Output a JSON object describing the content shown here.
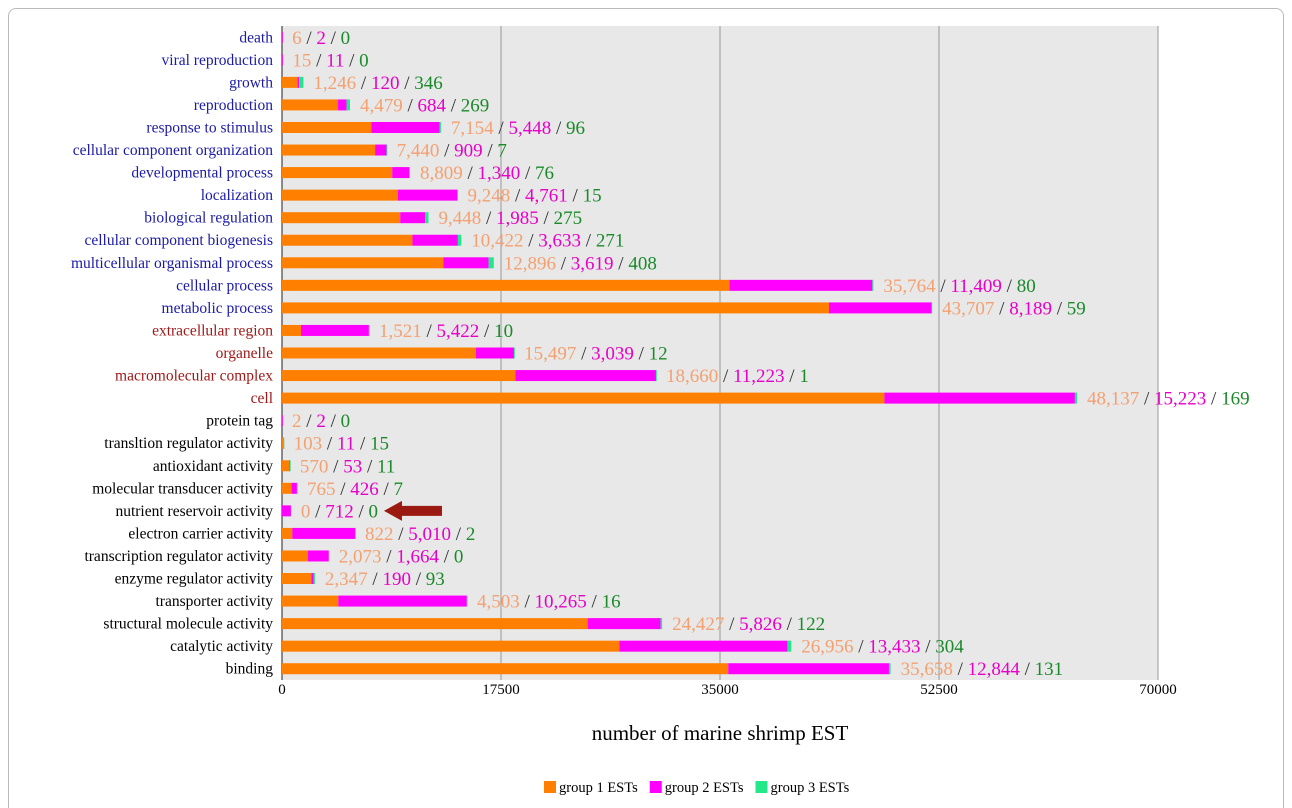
{
  "chart_data": {
    "type": "bar",
    "orientation": "horizontal",
    "stacked": true,
    "xlabel": "number of marine shrimp EST",
    "xlim": [
      0,
      70000
    ],
    "xticks": [
      0,
      17500,
      35000,
      52500,
      70000
    ],
    "grid": true,
    "legend_position": "bottom",
    "categories": [
      "death",
      "viral reproduction",
      "growth",
      "reproduction",
      "response to stimulus",
      "cellular component organization",
      "developmental process",
      "localization",
      "biological regulation",
      "cellular component biogenesis",
      "multicellular organismal process",
      "cellular process",
      "metabolic process",
      "extracellular region",
      "organelle",
      "macromolecular complex",
      "cell",
      "protein tag",
      "transltion regulator activity",
      "antioxidant activity",
      "molecular transducer activity",
      "nutrient reservoir activity",
      "electron carrier activity",
      "transcription regulator activity",
      "enzyme regulator activity",
      "transporter activity",
      "structural molecule activity",
      "catalytic activity",
      "binding"
    ],
    "category_colors": [
      "#1a1aa6",
      "#1a1aa6",
      "#1a1aa6",
      "#1a1aa6",
      "#1a1aa6",
      "#1a1aa6",
      "#1a1aa6",
      "#1a1aa6",
      "#1a1aa6",
      "#1a1aa6",
      "#1a1aa6",
      "#1a1aa6",
      "#1a1aa6",
      "#a01818",
      "#a01818",
      "#a01818",
      "#a01818",
      "#000000",
      "#000000",
      "#000000",
      "#000000",
      "#000000",
      "#000000",
      "#000000",
      "#000000",
      "#000000",
      "#000000",
      "#000000",
      "#000000"
    ],
    "series": [
      {
        "name": "group 1 ESTs",
        "color": "#ff7f00",
        "label_color": "#f4a070",
        "values": [
          6,
          15,
          1246,
          4479,
          7154,
          7440,
          8809,
          9248,
          9448,
          10422,
          12896,
          35764,
          43707,
          1521,
          15497,
          18660,
          48137,
          2,
          103,
          570,
          765,
          0,
          822,
          2073,
          2347,
          4503,
          24427,
          26956,
          35658
        ],
        "labels": [
          "6",
          "15",
          "1,246",
          "4,479",
          "7,154",
          "7,440",
          "8,809",
          "9,248",
          "9,448",
          "10,422",
          "12,896",
          "35,764",
          "43,707",
          "1,521",
          "15,497",
          "18,660",
          "48,137",
          "2",
          "103",
          "570",
          "765",
          "0",
          "822",
          "2,073",
          "2,347",
          "4,503",
          "24,427",
          "26,956",
          "35,658"
        ]
      },
      {
        "name": "group 2 ESTs",
        "color": "#ff00ff",
        "label_color": "#e600c8",
        "values": [
          2,
          11,
          120,
          684,
          5448,
          909,
          1340,
          4761,
          1985,
          3633,
          3619,
          11409,
          8189,
          5422,
          3039,
          11223,
          15223,
          2,
          11,
          53,
          426,
          712,
          5010,
          1664,
          190,
          10265,
          5826,
          13433,
          12844
        ],
        "labels": [
          "2",
          "11",
          "120",
          "684",
          "5,448",
          "909",
          "1,340",
          "4,761",
          "1,985",
          "3,633",
          "3,619",
          "11,409",
          "8,189",
          "5,422",
          "3,039",
          "11,223",
          "15,223",
          "2",
          "11",
          "53",
          "426",
          "712",
          "5,010",
          "1,664",
          "190",
          "10,265",
          "5,826",
          "13,433",
          "12,844"
        ]
      },
      {
        "name": "group 3 ESTs",
        "color": "#22e88a",
        "label_color": "#1a8a2a",
        "values": [
          0,
          0,
          346,
          269,
          96,
          7,
          76,
          15,
          275,
          271,
          408,
          80,
          59,
          10,
          12,
          1,
          169,
          0,
          15,
          11,
          7,
          0,
          2,
          0,
          93,
          16,
          122,
          304,
          131
        ],
        "labels": [
          "0",
          "0",
          "346",
          "269",
          "96",
          "7",
          "76",
          "15",
          "275",
          "271",
          "408",
          "80",
          "59",
          "10",
          "12",
          "1",
          "169",
          "0",
          "15",
          "11",
          "7",
          "0",
          "2",
          "0",
          "93",
          "16",
          "122",
          "304",
          "131"
        ]
      }
    ],
    "separator": " / ",
    "highlight_arrow": {
      "category": "nutrient reservoir activity",
      "color": "#9a1a12"
    },
    "colors": {
      "plot_background": "#e8e8e8",
      "gridline": "#999999",
      "axis": "#444444"
    }
  }
}
